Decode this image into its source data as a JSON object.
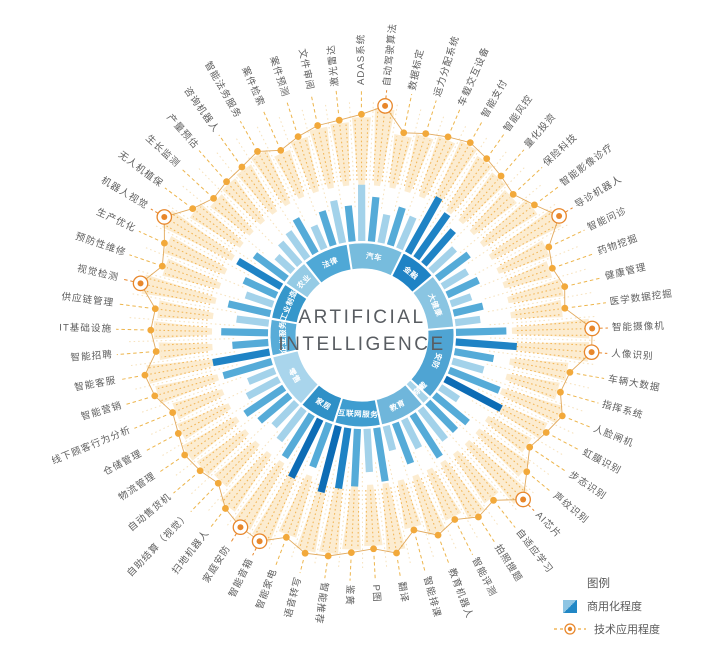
{
  "center": {
    "title_line1": "ARTIFICIAL",
    "title_line2": "INTELLIGENCE"
  },
  "legend": {
    "title": "图例",
    "items": [
      {
        "label": "商用化程度",
        "type": "commercialization",
        "colors": [
          "#8EC5E3",
          "#2187C5"
        ]
      },
      {
        "label": "技术应用程度",
        "type": "tech-application",
        "color": "#E8872B"
      }
    ]
  },
  "palette": {
    "bar_light": "#A3D2EA",
    "bar_mid": "#55ABD8",
    "bar_dark": "#1F83C5",
    "bar_navy": "#0D6CB5",
    "orange": "#F2A93B",
    "orange_deep": "#E8872B",
    "tech_wedge": "#FBE7C3",
    "tech_ray": "#F1AE45",
    "tech_connector": "#EDB54C",
    "tech_curve": "#DFA04A",
    "label_text": "#5E5E5E",
    "center_text": "#595D62"
  },
  "chart_data": {
    "type": "radial-bar",
    "title": "ARTIFICIAL INTELLIGENCE",
    "angle_start_deg": -9,
    "value_scale": "relative 0-100 (estimated from bar/dot radii)",
    "series_legend": [
      "商用化程度",
      "技术应用程度"
    ],
    "categories": [
      {
        "name": "汽车",
        "color": "#77BCDD",
        "items": [
          {
            "label": "激光雷达",
            "commercialization": 50,
            "tech_application": 80,
            "shade": "mid",
            "highlight": false
          },
          {
            "label": "ADAS系统",
            "commercialization": 78,
            "tech_application": 85,
            "shade": "light",
            "highlight": false
          },
          {
            "label": "自动驾驶算法",
            "commercialization": 62,
            "tech_application": 95,
            "shade": "mid",
            "highlight": true
          },
          {
            "label": "数据标定",
            "commercialization": 40,
            "tech_application": 70,
            "shade": "light",
            "highlight": false
          },
          {
            "label": "运力分配系统",
            "commercialization": 55,
            "tech_application": 75,
            "shade": "mid",
            "highlight": false
          },
          {
            "label": "车载交互设备",
            "commercialization": 48,
            "tech_application": 80,
            "shade": "light",
            "highlight": false
          }
        ]
      },
      {
        "name": "金融",
        "color": "#1F83C5",
        "items": [
          {
            "label": "智能支付",
            "commercialization": 88,
            "tech_application": 85,
            "shade": "dark",
            "highlight": false
          },
          {
            "label": "智能风控",
            "commercialization": 75,
            "tech_application": 80,
            "shade": "dark",
            "highlight": false
          },
          {
            "label": "量化投资",
            "commercialization": 62,
            "tech_application": 75,
            "shade": "dark",
            "highlight": false
          },
          {
            "label": "保险科技",
            "commercialization": 45,
            "tech_application": 70,
            "shade": "light",
            "highlight": false
          }
        ]
      },
      {
        "name": "大健康",
        "color": "#8AC5E2",
        "items": [
          {
            "label": "智能影像诊疗",
            "commercialization": 55,
            "tech_application": 80,
            "shade": "mid",
            "highlight": false
          },
          {
            "label": "导诊机器人",
            "commercialization": 40,
            "tech_application": 95,
            "shade": "light",
            "highlight": true
          },
          {
            "label": "智能问诊",
            "commercialization": 48,
            "tech_application": 70,
            "shade": "mid",
            "highlight": false
          },
          {
            "label": "药物挖掘",
            "commercialization": 30,
            "tech_application": 65,
            "shade": "light",
            "highlight": false
          },
          {
            "label": "健康管理",
            "commercialization": 42,
            "tech_application": 72,
            "shade": "mid",
            "highlight": false
          },
          {
            "label": "医学数据挖掘",
            "commercialization": 35,
            "tech_application": 68,
            "shade": "light",
            "highlight": false
          }
        ]
      },
      {
        "name": "安防",
        "color": "#4FA4D3",
        "items": [
          {
            "label": "智能摄像机",
            "commercialization": 70,
            "tech_application": 95,
            "shade": "mid",
            "highlight": true
          },
          {
            "label": "人像识别",
            "commercialization": 85,
            "tech_application": 95,
            "shade": "dark",
            "highlight": true
          },
          {
            "label": "车辆大数据",
            "commercialization": 55,
            "tech_application": 75,
            "shade": "mid",
            "highlight": false
          },
          {
            "label": "指挥系统",
            "commercialization": 45,
            "tech_application": 70,
            "shade": "light",
            "highlight": false
          },
          {
            "label": "人脸闸机",
            "commercialization": 75,
            "tech_application": 80,
            "shade": "mid",
            "highlight": false
          },
          {
            "label": "虹膜识别",
            "commercialization": 88,
            "tech_application": 72,
            "shade": "navy",
            "highlight": false
          },
          {
            "label": "步态识别",
            "commercialization": 30,
            "tech_application": 65,
            "shade": "light",
            "highlight": false
          },
          {
            "label": "声纹识别",
            "commercialization": 60,
            "tech_application": 78,
            "shade": "mid",
            "highlight": false
          }
        ]
      },
      {
        "name": "可穿戴",
        "color": "#A7D4EA",
        "items": [
          {
            "label": "AI芯片",
            "commercialization": 55,
            "tech_application": 95,
            "shade": "mid",
            "highlight": true
          }
        ]
      },
      {
        "name": "教育",
        "color": "#6FB6DB",
        "items": [
          {
            "label": "自适应学习",
            "commercialization": 55,
            "tech_application": 75,
            "shade": "light",
            "highlight": false
          },
          {
            "label": "拍照搜题",
            "commercialization": 70,
            "tech_application": 80,
            "shade": "mid",
            "highlight": false
          },
          {
            "label": "智能评测",
            "commercialization": 45,
            "tech_application": 70,
            "shade": "light",
            "highlight": false
          },
          {
            "label": "教育机器人",
            "commercialization": 60,
            "tech_application": 78,
            "shade": "mid",
            "highlight": false
          },
          {
            "label": "智能排课",
            "commercialization": 35,
            "tech_application": 65,
            "shade": "light",
            "highlight": false
          }
        ]
      },
      {
        "name": "互联网服务",
        "color": "#3F9DD0",
        "items": [
          {
            "label": "翻译",
            "commercialization": 75,
            "tech_application": 85,
            "shade": "mid",
            "highlight": false
          },
          {
            "label": "P图",
            "commercialization": 60,
            "tech_application": 78,
            "shade": "light",
            "highlight": false
          },
          {
            "label": "鉴黄",
            "commercialization": 80,
            "tech_application": 82,
            "shade": "mid",
            "highlight": false
          },
          {
            "label": "智能推荐",
            "commercialization": 85,
            "tech_application": 88,
            "shade": "dark",
            "highlight": false
          },
          {
            "label": "语音转写",
            "commercialization": 95,
            "tech_application": 90,
            "shade": "navy",
            "highlight": false
          }
        ]
      },
      {
        "name": "家居",
        "color": "#2F90C7",
        "items": [
          {
            "label": "智能家电",
            "commercialization": 65,
            "tech_application": 80,
            "shade": "mid",
            "highlight": false
          },
          {
            "label": "智能音箱",
            "commercialization": 90,
            "tech_application": 95,
            "shade": "navy",
            "highlight": true
          },
          {
            "label": "家庭安防",
            "commercialization": 70,
            "tech_application": 92,
            "shade": "mid",
            "highlight": true
          },
          {
            "label": "扫地机器人",
            "commercialization": 55,
            "tech_application": 85,
            "shade": "light",
            "highlight": false
          }
        ]
      },
      {
        "name": "零售",
        "color": "#A9D5EC",
        "items": [
          {
            "label": "自助结算（视觉）",
            "commercialization": 45,
            "tech_application": 70,
            "shade": "light",
            "highlight": false
          },
          {
            "label": "自动售货机",
            "commercialization": 55,
            "tech_application": 75,
            "shade": "mid",
            "highlight": false
          },
          {
            "label": "物流管理",
            "commercialization": 65,
            "tech_application": 78,
            "shade": "mid",
            "highlight": false
          },
          {
            "label": "仓储管理",
            "commercialization": 50,
            "tech_application": 72,
            "shade": "light",
            "highlight": false
          },
          {
            "label": "线下顾客行为分析",
            "commercialization": 40,
            "tech_application": 68,
            "shade": "light",
            "highlight": false
          },
          {
            "label": "智能营销",
            "commercialization": 70,
            "tech_application": 80,
            "shade": "mid",
            "highlight": false
          }
        ]
      },
      {
        "name": "企业服务",
        "color": "#58ACD8",
        "items": [
          {
            "label": "智能客服",
            "commercialization": 80,
            "tech_application": 85,
            "shade": "dark",
            "highlight": false
          },
          {
            "label": "智能招聘",
            "commercialization": 50,
            "tech_application": 70,
            "shade": "mid",
            "highlight": false
          },
          {
            "label": "IT基础设施",
            "commercialization": 65,
            "tech_application": 75,
            "shade": "mid",
            "highlight": false
          },
          {
            "label": "供应链管理",
            "commercialization": 45,
            "tech_application": 72,
            "shade": "light",
            "highlight": false
          }
        ]
      },
      {
        "name": "工业制造",
        "color": "#3697CB",
        "items": [
          {
            "label": "视觉检测",
            "commercialization": 60,
            "tech_application": 92,
            "shade": "mid",
            "highlight": true
          },
          {
            "label": "预防性维修",
            "commercialization": 40,
            "tech_application": 75,
            "shade": "light",
            "highlight": false
          },
          {
            "label": "生产优化",
            "commercialization": 50,
            "tech_application": 82,
            "shade": "mid",
            "highlight": false
          },
          {
            "label": "机器人视觉",
            "commercialization": 70,
            "tech_application": 95,
            "shade": "dark",
            "highlight": true
          }
        ]
      },
      {
        "name": "农业",
        "color": "#95CBE5",
        "items": [
          {
            "label": "无人机植保",
            "commercialization": 55,
            "tech_application": 75,
            "shade": "mid",
            "highlight": false
          },
          {
            "label": "生长监测",
            "commercialization": 30,
            "tech_application": 65,
            "shade": "light",
            "highlight": false
          },
          {
            "label": "产量预估",
            "commercialization": 40,
            "tech_application": 68,
            "shade": "light",
            "highlight": false
          }
        ]
      },
      {
        "name": "法律",
        "color": "#4FA8D6",
        "items": [
          {
            "label": "咨询机器人",
            "commercialization": 45,
            "tech_application": 70,
            "shade": "light",
            "highlight": false
          },
          {
            "label": "智能法务服务",
            "commercialization": 55,
            "tech_application": 75,
            "shade": "mid",
            "highlight": false
          },
          {
            "label": "案件检索",
            "commercialization": 35,
            "tech_application": 65,
            "shade": "light",
            "highlight": false
          },
          {
            "label": "案件预测",
            "commercialization": 50,
            "tech_application": 72,
            "shade": "mid",
            "highlight": false
          },
          {
            "label": "文件审阅",
            "commercialization": 60,
            "tech_application": 78,
            "shade": "light",
            "highlight": false
          }
        ]
      }
    ]
  }
}
